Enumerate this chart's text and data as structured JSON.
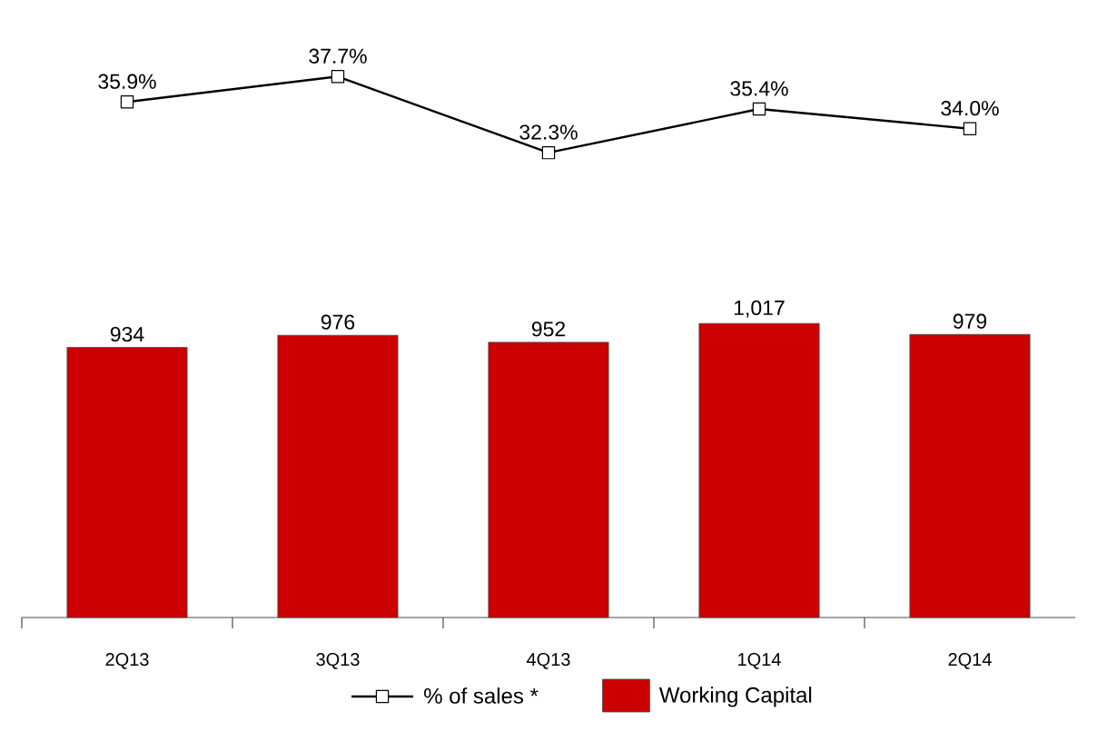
{
  "chart_data": [
    {
      "type": "line",
      "categories": [
        null,
        null,
        null,
        null,
        null
      ],
      "legend": "bottom",
      "marker": "square",
      "series": [
        {
          "name": "% of sales *",
          "color": "#000000",
          "values": [
            35.9,
            37.7,
            32.3,
            35.4,
            34.0
          ],
          "value_labels": [
            "35.9%",
            "37.7%",
            "32.3%",
            "35.4%",
            "34.0%"
          ]
        }
      ]
    },
    {
      "type": "bar",
      "categories": [
        "2Q13",
        "3Q13",
        "4Q13",
        "1Q14",
        "2Q14"
      ],
      "legend": "bottom",
      "series": [
        {
          "name": "Working Capital",
          "color": "#cc0000",
          "values": [
            934,
            976,
            952,
            1017,
            979
          ],
          "value_labels": [
            "934",
            "976",
            "952",
            "1,017",
            "979"
          ]
        }
      ]
    }
  ]
}
